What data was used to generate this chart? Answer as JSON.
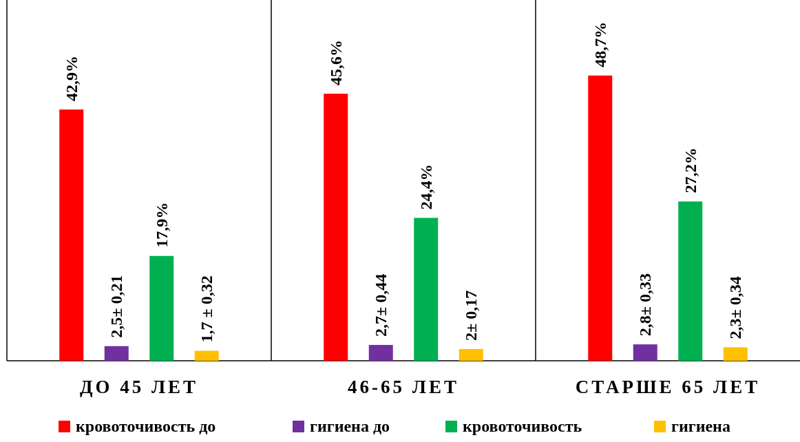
{
  "chart_data": {
    "type": "bar",
    "categories": [
      "ДО 45 ЛЕТ",
      "46-65 ЛЕТ",
      "СТАРШЕ 65 ЛЕТ"
    ],
    "ylim": [
      0,
      61.6
    ],
    "legend": "bottom",
    "series": [
      {
        "name": "кровоточивость до",
        "color": "#ff0000",
        "values": [
          42.9,
          45.6,
          48.7
        ],
        "value_labels": [
          "42,9%",
          "45,6%",
          "48,7%"
        ]
      },
      {
        "name": "гигиена до",
        "color": "#7030a0",
        "values": [
          2.5,
          2.7,
          2.8
        ],
        "value_labels": [
          "2,5± 0,21",
          "2,7± 0,44",
          "2,8± 0,33"
        ]
      },
      {
        "name": "кровоточивость",
        "color": "#00b050",
        "values": [
          17.9,
          24.4,
          27.2
        ],
        "value_labels": [
          "17,9%",
          "24,4%",
          "27,2%"
        ]
      },
      {
        "name": "гигиена",
        "color": "#ffc000",
        "values": [
          1.7,
          2,
          2.3
        ],
        "value_labels": [
          "1,7 ± 0,32",
          "2± 0,17",
          "2,3± 0,34"
        ]
      }
    ]
  }
}
